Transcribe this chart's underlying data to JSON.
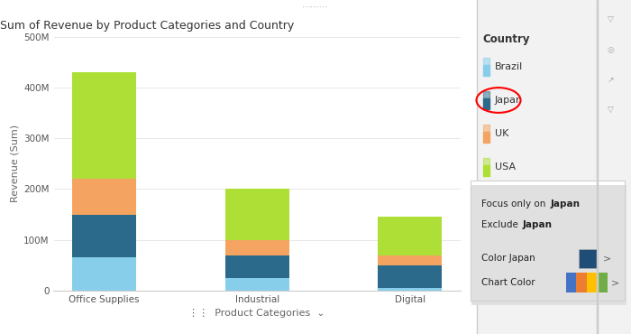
{
  "title": "Sum of Revenue by Product Categories and Country",
  "xlabel": "Product Categories",
  "ylabel": "Revenue (Sum)",
  "categories": [
    "Office Supplies",
    "Industrial",
    "Digital"
  ],
  "countries": [
    "Brazil",
    "Japan",
    "UK",
    "USA"
  ],
  "colors": {
    "Brazil": "#87CEEB",
    "Japan": "#2B6A8A",
    "UK": "#F4A460",
    "USA": "#ADDF36"
  },
  "values": {
    "Office Supplies": {
      "Brazil": 65000000,
      "Japan": 85000000,
      "UK": 70000000,
      "USA": 210000000
    },
    "Industrial": {
      "Brazil": 25000000,
      "Japan": 45000000,
      "UK": 30000000,
      "USA": 100000000
    },
    "Digital": {
      "Brazil": 5000000,
      "Japan": 45000000,
      "UK": 20000000,
      "USA": 75000000
    }
  },
  "ylim": [
    0,
    500000000
  ],
  "yticks": [
    0,
    100000000,
    200000000,
    300000000,
    400000000,
    500000000
  ],
  "ytick_labels": [
    "0",
    "100M",
    "200M",
    "300M",
    "400M",
    "500M"
  ],
  "background_color": "#ffffff",
  "right_panel_bg": "#f2f2f2",
  "grid_color": "#e8e8e8",
  "title_fontsize": 9,
  "axis_fontsize": 8,
  "tick_fontsize": 7.5,
  "legend_title": "Country",
  "legend_countries": [
    "Brazil",
    "Japan",
    "UK",
    "USA"
  ],
  "legend_colors": {
    "Brazil": "#87CEEB",
    "Japan": "#2B6A8A",
    "UK": "#F4A460",
    "USA": "#ADDF36"
  }
}
